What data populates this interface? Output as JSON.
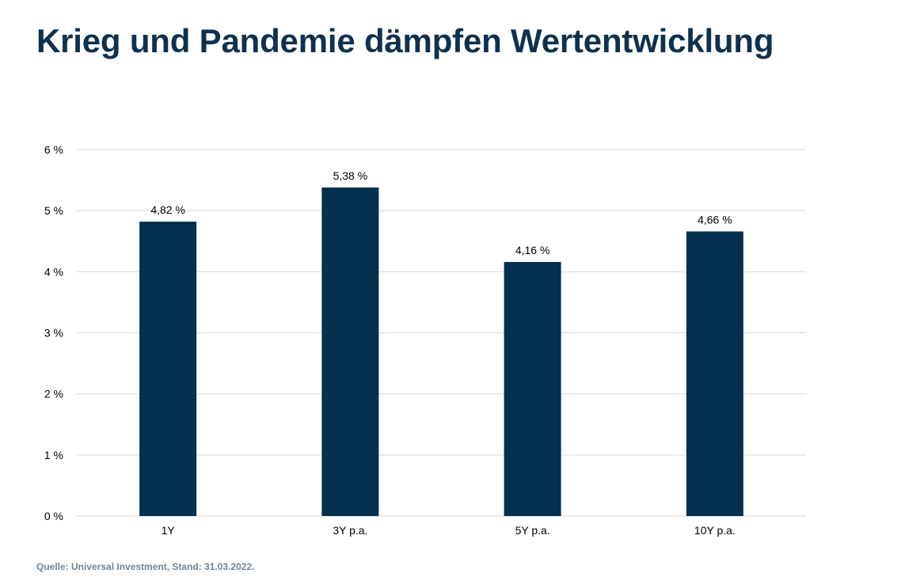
{
  "header": {
    "title": "Krieg und Pandemie dämpfen Wertentwicklung"
  },
  "footer": {
    "source": "Quelle: Universal Investment, Stand: 31.03.2022."
  },
  "colors": {
    "bar": "#05304f",
    "title": "#0f3150",
    "grid": "#d9d9d9",
    "source": "#6f8494"
  },
  "chart_data": {
    "type": "bar",
    "title": "Krieg und Pandemie dämpfen Wertentwicklung",
    "categories": [
      "1Y",
      "3Y p.a.",
      "5Y p.a.",
      "10Y p.a."
    ],
    "values": [
      4.82,
      5.38,
      4.16,
      4.66
    ],
    "data_labels": [
      "4,82 %",
      "5,38 %",
      "4,16 %",
      "4,66 %"
    ],
    "xlabel": "",
    "ylabel": "",
    "ylim": [
      0,
      6
    ],
    "yticks": [
      0,
      1,
      2,
      3,
      4,
      5,
      6
    ],
    "ytick_labels": [
      "0 %",
      "1 %",
      "2 %",
      "3 %",
      "4 %",
      "5 %",
      "6 %"
    ],
    "grid": true,
    "legend": "none"
  }
}
